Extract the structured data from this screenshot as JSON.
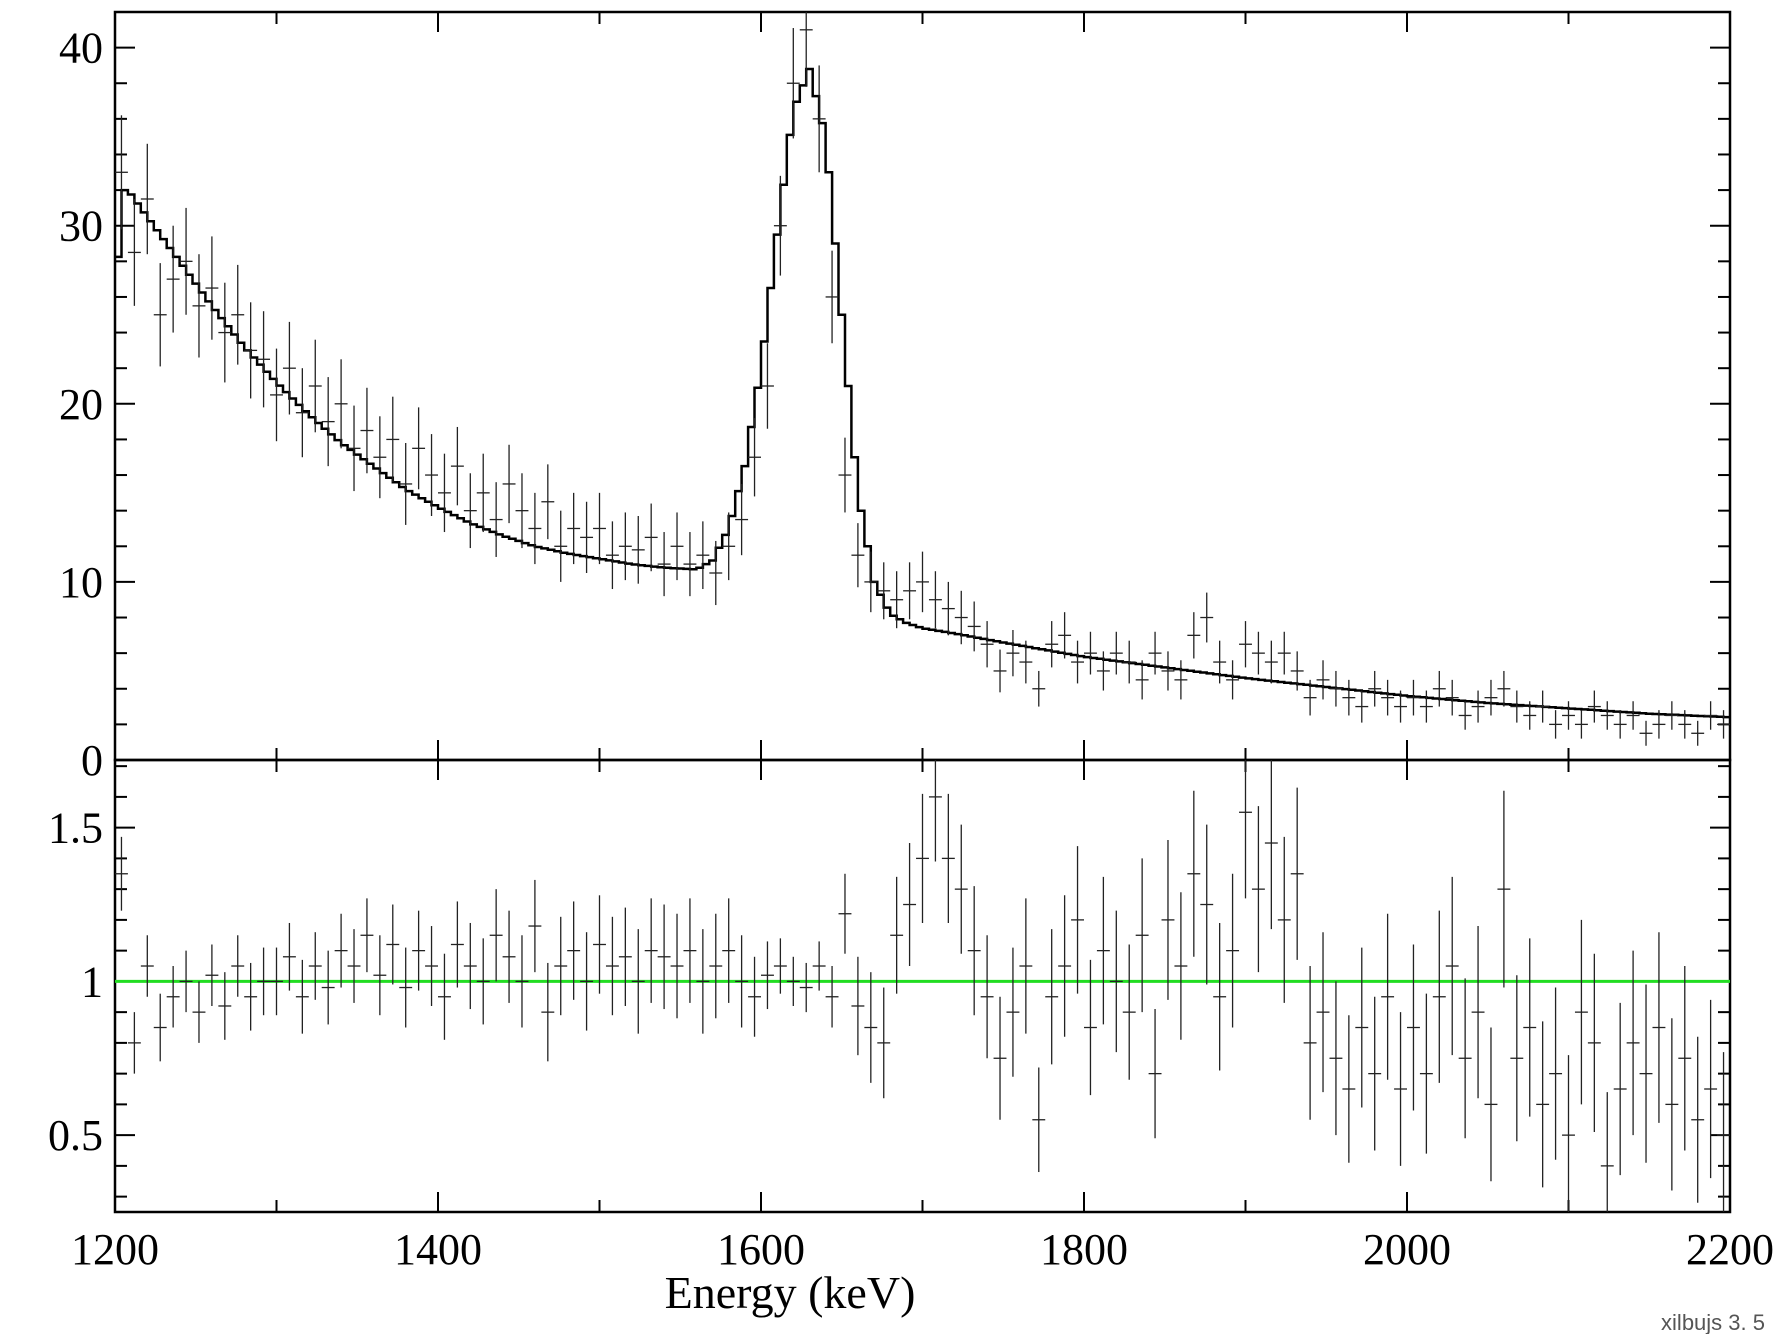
{
  "chart_data": [
    {
      "type": "line",
      "panel": "spectrum",
      "xlim": [
        1200,
        2200
      ],
      "ylim": [
        0,
        42
      ],
      "yticks": [
        0,
        10,
        20,
        30,
        40
      ],
      "ytick_labels": [
        "0",
        "10",
        "20",
        "30",
        "40"
      ],
      "xlabel": "",
      "ylabel": "",
      "grid": false,
      "series": [
        {
          "style": "histogram-step",
          "x": [
            1200,
            1204,
            1208,
            1220,
            1240,
            1260,
            1280,
            1300,
            1320,
            1340,
            1360,
            1380,
            1400,
            1420,
            1440,
            1460,
            1480,
            1500,
            1520,
            1540,
            1560,
            1570,
            1580,
            1590,
            1600,
            1610,
            1620,
            1630,
            1640,
            1650,
            1660,
            1670,
            1680,
            1690,
            1700,
            1720,
            1750,
            1800,
            1850,
            1900,
            1950,
            2000,
            2050,
            2100,
            2150,
            2200
          ],
          "y": [
            24.5,
            32,
            32,
            30.5,
            28,
            25.5,
            23.2,
            21.2,
            19.4,
            17.8,
            16.5,
            15.2,
            14.2,
            13.3,
            12.6,
            12.0,
            11.6,
            11.3,
            11.0,
            10.8,
            10.7,
            11.2,
            13.0,
            16.5,
            22.0,
            29.5,
            36.5,
            38.8,
            35.0,
            25.0,
            15.0,
            10.0,
            8.2,
            7.7,
            7.4,
            7.1,
            6.6,
            5.8,
            5.2,
            4.6,
            4.1,
            3.6,
            3.2,
            2.9,
            2.6,
            2.4
          ]
        },
        {
          "style": "data-crosses",
          "x": [
            1204,
            1212,
            1220,
            1228,
            1236,
            1244,
            1252,
            1260,
            1268,
            1276,
            1284,
            1292,
            1300,
            1308,
            1316,
            1324,
            1332,
            1340,
            1348,
            1356,
            1364,
            1372,
            1380,
            1388,
            1396,
            1404,
            1412,
            1420,
            1428,
            1436,
            1444,
            1452,
            1460,
            1468,
            1476,
            1484,
            1492,
            1500,
            1508,
            1516,
            1524,
            1532,
            1540,
            1548,
            1556,
            1564,
            1572,
            1580,
            1588,
            1596,
            1604,
            1612,
            1620,
            1628,
            1636,
            1644,
            1652,
            1660,
            1668,
            1676,
            1684,
            1692,
            1700,
            1708,
            1716,
            1724,
            1732,
            1740,
            1748,
            1756,
            1764,
            1772,
            1780,
            1788,
            1796,
            1804,
            1812,
            1820,
            1828,
            1836,
            1844,
            1852,
            1860,
            1868,
            1876,
            1884,
            1892,
            1900,
            1908,
            1916,
            1924,
            1932,
            1940,
            1948,
            1956,
            1964,
            1972,
            1980,
            1988,
            1996,
            2004,
            2012,
            2020,
            2028,
            2036,
            2044,
            2052,
            2060,
            2068,
            2076,
            2084,
            2092,
            2100,
            2108,
            2116,
            2124,
            2132,
            2140,
            2148,
            2156,
            2164,
            2172,
            2180,
            2188,
            2196
          ],
          "y": [
            33.0,
            28.5,
            31.5,
            25.0,
            27.0,
            28.0,
            25.5,
            26.5,
            24.0,
            25.0,
            23.0,
            22.5,
            20.5,
            22.0,
            19.5,
            21.0,
            19.0,
            20.0,
            17.5,
            18.5,
            17.0,
            18.0,
            15.5,
            17.5,
            16.0,
            15.0,
            16.5,
            14.0,
            15.0,
            13.5,
            15.5,
            14.0,
            13.0,
            14.5,
            12.0,
            13.0,
            12.5,
            13.0,
            11.5,
            12.0,
            11.8,
            12.5,
            11.0,
            12.0,
            11.0,
            11.5,
            10.5,
            12.0,
            13.5,
            17.0,
            21.0,
            30.0,
            38.0,
            41.0,
            36.0,
            26.0,
            16.0,
            11.5,
            10.0,
            9.5,
            9.0,
            9.5,
            10.0,
            9.0,
            8.5,
            8.0,
            7.5,
            6.5,
            5.0,
            6.0,
            5.5,
            4.0,
            6.5,
            7.0,
            5.5,
            6.0,
            5.0,
            6.0,
            5.5,
            4.5,
            6.0,
            5.0,
            4.5,
            7.0,
            8.0,
            5.5,
            4.5,
            6.5,
            6.0,
            5.5,
            6.0,
            5.0,
            3.5,
            4.5,
            4.0,
            3.5,
            3.0,
            4.0,
            3.5,
            3.0,
            3.5,
            3.0,
            4.0,
            3.5,
            2.5,
            3.0,
            3.5,
            4.0,
            3.0,
            2.5,
            3.0,
            2.0,
            2.5,
            2.0,
            3.0,
            2.5,
            2.0,
            2.5,
            1.5,
            2.0,
            2.5,
            2.0,
            1.5,
            2.5,
            2.0
          ],
          "yerr": [
            3.2,
            3.0,
            3.1,
            2.9,
            3.0,
            3.0,
            2.9,
            2.9,
            2.8,
            2.8,
            2.7,
            2.7,
            2.6,
            2.6,
            2.5,
            2.6,
            2.5,
            2.5,
            2.4,
            2.4,
            2.3,
            2.4,
            2.3,
            2.3,
            2.3,
            2.2,
            2.2,
            2.1,
            2.2,
            2.1,
            2.2,
            2.1,
            2.0,
            2.1,
            2.0,
            2.0,
            2.0,
            2.0,
            1.9,
            1.9,
            1.9,
            1.9,
            1.8,
            1.9,
            1.8,
            1.9,
            1.8,
            1.9,
            2.0,
            2.2,
            2.4,
            2.8,
            3.1,
            3.2,
            3.0,
            2.6,
            2.1,
            1.8,
            1.7,
            1.6,
            1.6,
            1.6,
            1.7,
            1.6,
            1.5,
            1.5,
            1.4,
            1.3,
            1.2,
            1.3,
            1.2,
            1.0,
            1.3,
            1.3,
            1.2,
            1.2,
            1.1,
            1.2,
            1.2,
            1.1,
            1.2,
            1.1,
            1.1,
            1.3,
            1.4,
            1.2,
            1.1,
            1.3,
            1.2,
            1.2,
            1.2,
            1.1,
            1.0,
            1.1,
            1.0,
            1.0,
            0.9,
            1.0,
            1.0,
            0.9,
            1.0,
            0.9,
            1.0,
            1.0,
            0.8,
            0.9,
            1.0,
            1.0,
            0.9,
            0.8,
            0.9,
            0.8,
            0.8,
            0.8,
            0.9,
            0.8,
            0.8,
            0.8,
            0.7,
            0.8,
            0.8,
            0.8,
            0.7,
            0.8,
            0.8
          ]
        }
      ]
    },
    {
      "type": "scatter",
      "panel": "ratio",
      "xlim": [
        1200,
        2200
      ],
      "ylim": [
        0.25,
        1.72
      ],
      "yticks": [
        0.5,
        1,
        1.5
      ],
      "ytick_labels": [
        "0.5",
        "1",
        "1.5"
      ],
      "xticks": [
        1200,
        1400,
        1600,
        1800,
        2000,
        2200
      ],
      "xtick_labels": [
        "1200",
        "1400",
        "1600",
        "1800",
        "2000",
        "2200"
      ],
      "xlabel": "Energy (keV)",
      "ylabel": "",
      "reference_line": {
        "y": 1,
        "color": "#22dd22"
      },
      "series": [
        {
          "style": "data-crosses",
          "x": [
            1204,
            1212,
            1220,
            1228,
            1236,
            1244,
            1252,
            1260,
            1268,
            1276,
            1284,
            1292,
            1300,
            1308,
            1316,
            1324,
            1332,
            1340,
            1348,
            1356,
            1364,
            1372,
            1380,
            1388,
            1396,
            1404,
            1412,
            1420,
            1428,
            1436,
            1444,
            1452,
            1460,
            1468,
            1476,
            1484,
            1492,
            1500,
            1508,
            1516,
            1524,
            1532,
            1540,
            1548,
            1556,
            1564,
            1572,
            1580,
            1588,
            1596,
            1604,
            1612,
            1620,
            1628,
            1636,
            1644,
            1652,
            1660,
            1668,
            1676,
            1684,
            1692,
            1700,
            1708,
            1716,
            1724,
            1732,
            1740,
            1748,
            1756,
            1764,
            1772,
            1780,
            1788,
            1796,
            1804,
            1812,
            1820,
            1828,
            1836,
            1844,
            1852,
            1860,
            1868,
            1876,
            1884,
            1892,
            1900,
            1908,
            1916,
            1924,
            1932,
            1940,
            1948,
            1956,
            1964,
            1972,
            1980,
            1988,
            1996,
            2004,
            2012,
            2020,
            2028,
            2036,
            2044,
            2052,
            2060,
            2068,
            2076,
            2084,
            2092,
            2100,
            2108,
            2116,
            2124,
            2132,
            2140,
            2148,
            2156,
            2164,
            2172,
            2180,
            2188,
            2196
          ],
          "y": [
            1.35,
            0.8,
            1.05,
            0.85,
            0.95,
            1.0,
            0.9,
            1.02,
            0.92,
            1.05,
            0.95,
            1.0,
            1.0,
            1.08,
            0.95,
            1.05,
            0.98,
            1.1,
            1.05,
            1.15,
            1.02,
            1.12,
            0.98,
            1.1,
            1.05,
            0.95,
            1.12,
            1.05,
            1.0,
            1.15,
            1.08,
            1.0,
            1.18,
            0.9,
            1.05,
            1.1,
            1.0,
            1.12,
            1.05,
            1.08,
            1.0,
            1.1,
            1.08,
            1.05,
            1.1,
            1.0,
            1.05,
            1.1,
            1.0,
            0.95,
            1.02,
            1.05,
            1.0,
            0.98,
            1.05,
            0.95,
            1.22,
            0.92,
            0.85,
            0.8,
            1.15,
            1.25,
            1.4,
            1.6,
            1.4,
            1.3,
            1.1,
            0.95,
            0.75,
            0.9,
            1.05,
            0.55,
            0.95,
            1.05,
            1.2,
            0.85,
            1.1,
            1.0,
            0.9,
            1.15,
            0.7,
            1.2,
            1.05,
            1.35,
            1.25,
            0.95,
            1.1,
            1.55,
            1.3,
            1.45,
            1.2,
            1.35,
            0.8,
            0.9,
            0.75,
            0.65,
            0.85,
            0.7,
            0.95,
            0.65,
            0.85,
            0.7,
            0.95,
            1.05,
            0.75,
            0.9,
            0.6,
            1.3,
            0.75,
            0.85,
            0.6,
            0.7,
            0.5,
            0.9,
            0.8,
            0.4,
            0.65,
            0.8,
            0.7,
            0.85,
            0.6,
            0.75,
            0.55,
            0.65,
            0.5
          ],
          "yerr": [
            0.12,
            0.1,
            0.1,
            0.11,
            0.1,
            0.1,
            0.1,
            0.1,
            0.11,
            0.1,
            0.11,
            0.11,
            0.11,
            0.11,
            0.12,
            0.11,
            0.12,
            0.12,
            0.12,
            0.12,
            0.13,
            0.13,
            0.13,
            0.13,
            0.13,
            0.14,
            0.14,
            0.14,
            0.14,
            0.15,
            0.15,
            0.15,
            0.15,
            0.16,
            0.16,
            0.16,
            0.16,
            0.16,
            0.16,
            0.16,
            0.17,
            0.17,
            0.17,
            0.17,
            0.17,
            0.17,
            0.17,
            0.17,
            0.15,
            0.13,
            0.11,
            0.09,
            0.08,
            0.08,
            0.08,
            0.1,
            0.13,
            0.16,
            0.18,
            0.18,
            0.19,
            0.2,
            0.21,
            0.21,
            0.21,
            0.21,
            0.21,
            0.2,
            0.2,
            0.21,
            0.22,
            0.17,
            0.22,
            0.23,
            0.24,
            0.22,
            0.24,
            0.23,
            0.22,
            0.25,
            0.21,
            0.26,
            0.24,
            0.27,
            0.26,
            0.24,
            0.25,
            0.28,
            0.27,
            0.28,
            0.27,
            0.28,
            0.25,
            0.26,
            0.25,
            0.24,
            0.26,
            0.25,
            0.27,
            0.25,
            0.27,
            0.26,
            0.28,
            0.29,
            0.26,
            0.28,
            0.25,
            0.32,
            0.27,
            0.29,
            0.27,
            0.28,
            0.26,
            0.3,
            0.29,
            0.24,
            0.28,
            0.3,
            0.29,
            0.31,
            0.28,
            0.3,
            0.27,
            0.29,
            0.27
          ]
        }
      ]
    }
  ],
  "footer": {
    "watermark": "xilbujs 3. 5"
  }
}
